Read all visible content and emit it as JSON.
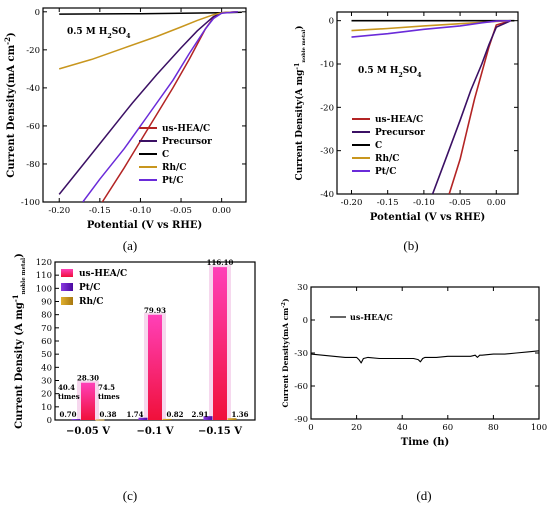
{
  "panel_labels": [
    "(a)",
    "(b)",
    "(c)",
    "(d)"
  ],
  "chart_data": [
    {
      "id": "a",
      "type": "line",
      "xlabel": "Potential (V vs RHE)",
      "ylabel": "Current Density(mA cm⁻²)",
      "annotation": "0.5 M H₂SO₄",
      "xlim": [
        -0.22,
        0.03
      ],
      "ylim": [
        -100,
        2
      ],
      "xticks": [
        -0.2,
        -0.15,
        -0.1,
        -0.05,
        0.0
      ],
      "yticks": [
        0,
        -20,
        -40,
        -60,
        -80,
        -100
      ],
      "xtick_labels": [
        "-0.20",
        "-0.15",
        "-0.10",
        "-0.05",
        "0.00"
      ],
      "ytick_labels": [
        "0",
        "-20",
        "-40",
        "-60",
        "-80",
        "-100"
      ],
      "legend_position": "bottom-right",
      "series": [
        {
          "name": "us-HEA/C",
          "color": "#b32424",
          "x": [
            -0.147,
            -0.12,
            -0.1,
            -0.08,
            -0.06,
            -0.04,
            -0.03,
            -0.02,
            -0.01,
            0.0,
            0.02
          ],
          "y": [
            -100,
            -82,
            -68,
            -54,
            -40,
            -25,
            -17,
            -9,
            -3,
            -0.5,
            0
          ]
        },
        {
          "name": "Precursor",
          "color": "#3b1064",
          "x": [
            -0.2,
            -0.17,
            -0.14,
            -0.11,
            -0.08,
            -0.05,
            -0.03,
            -0.01,
            0.0,
            0.02
          ],
          "y": [
            -96,
            -80,
            -64,
            -48,
            -33,
            -19,
            -10,
            -2.5,
            -0.6,
            0
          ]
        },
        {
          "name": "C",
          "color": "#000000",
          "x": [
            -0.2,
            -0.1,
            0.0,
            0.025
          ],
          "y": [
            -1.2,
            -1.0,
            -0.5,
            -0.2
          ]
        },
        {
          "name": "Rh/C",
          "color": "#c8961e",
          "x": [
            -0.2,
            -0.16,
            -0.12,
            -0.08,
            -0.05,
            -0.03,
            -0.01,
            0.0,
            0.02
          ],
          "y": [
            -30,
            -25,
            -19,
            -13,
            -8,
            -4.5,
            -1.5,
            -0.5,
            0
          ]
        },
        {
          "name": "Pt/C",
          "color": "#6a2bd9",
          "x": [
            -0.171,
            -0.15,
            -0.12,
            -0.09,
            -0.06,
            -0.04,
            -0.02,
            -0.01,
            0.0,
            0.02
          ],
          "y": [
            -100,
            -88,
            -72,
            -54,
            -36,
            -22,
            -9,
            -3.5,
            -0.8,
            0
          ]
        }
      ]
    },
    {
      "id": "b",
      "type": "line",
      "xlabel": "Potential (V vs RHE)",
      "ylabel": "Current Density(A mg⁻¹ noble metal)",
      "annotation": "0.5 M H₂SO₄",
      "xlim": [
        -0.22,
        0.03
      ],
      "ylim": [
        -40,
        2
      ],
      "xticks": [
        -0.2,
        -0.15,
        -0.1,
        -0.05,
        0.0
      ],
      "yticks": [
        0,
        -10,
        -20,
        -30,
        -40
      ],
      "xtick_labels": [
        "-0.20",
        "-0.15",
        "-0.10",
        "-0.05",
        "0.00"
      ],
      "ytick_labels": [
        "0",
        "-10",
        "-20",
        "-30",
        "-40"
      ],
      "legend_position": "bottom-left",
      "series": [
        {
          "name": "us-HEA/C",
          "color": "#b32424",
          "x": [
            -0.065,
            -0.05,
            -0.04,
            -0.03,
            -0.02,
            -0.01,
            0.0,
            0.02
          ],
          "y": [
            -40,
            -32,
            -25,
            -18,
            -12,
            -6,
            -1,
            0
          ]
        },
        {
          "name": "Precursor",
          "color": "#3b1064",
          "x": [
            -0.088,
            -0.07,
            -0.05,
            -0.035,
            -0.02,
            -0.01,
            0.0,
            0.02
          ],
          "y": [
            -40,
            -32,
            -23,
            -16,
            -10,
            -5.5,
            -1.5,
            0
          ]
        },
        {
          "name": "C",
          "color": "#000000",
          "x": [
            -0.2,
            -0.1,
            0.0,
            0.025
          ],
          "y": [
            0,
            0,
            0,
            0
          ]
        },
        {
          "name": "Rh/C",
          "color": "#c8961e",
          "x": [
            -0.2,
            -0.15,
            -0.1,
            -0.05,
            0.0,
            0.02
          ],
          "y": [
            -2.3,
            -1.8,
            -1.2,
            -0.7,
            -0.2,
            0
          ]
        },
        {
          "name": "Pt/C",
          "color": "#6a2bd9",
          "x": [
            -0.2,
            -0.15,
            -0.1,
            -0.05,
            -0.02,
            0.0,
            0.02
          ],
          "y": [
            -3.8,
            -3.0,
            -2.0,
            -1.2,
            -0.5,
            -0.1,
            0
          ]
        }
      ]
    },
    {
      "id": "c",
      "type": "bar",
      "ylabel": "Current Density (A mg⁻¹ noble metal)",
      "ylim": [
        0,
        120
      ],
      "yticks": [
        0,
        10,
        20,
        30,
        40,
        50,
        60,
        70,
        80,
        90,
        100,
        110,
        120
      ],
      "ytick_labels": [
        "0",
        "10",
        "20",
        "30",
        "40",
        "50",
        "60",
        "70",
        "80",
        "90",
        "100",
        "110",
        "120"
      ],
      "categories": [
        "−0.05 V",
        "−0.1 V",
        "−0.15 V"
      ],
      "legend_position": "top-left",
      "series": [
        {
          "name": "us-HEA/C",
          "color": "#f0208c",
          "values": [
            28.3,
            79.93,
            116.1
          ],
          "labels": [
            "28.30",
            "79.93",
            "116.10"
          ]
        },
        {
          "name": "Pt/C",
          "color": "#6a14c8",
          "values": [
            0.7,
            1.74,
            2.91
          ],
          "labels": [
            "0.70",
            "1.74",
            "2.91"
          ]
        },
        {
          "name": "Rh/C",
          "color": "#c89b1e",
          "values": [
            0.38,
            0.82,
            1.36
          ],
          "labels": [
            "0.38",
            "0.82",
            "1.36"
          ]
        }
      ],
      "annotations": [
        {
          "category": "−0.05 V",
          "text": "40.4"
        },
        {
          "category": "−0.05 V",
          "text": "times"
        },
        {
          "category": "−0.05 V",
          "text": "74.5"
        },
        {
          "category": "−0.05 V",
          "text": "times"
        }
      ]
    },
    {
      "id": "d",
      "type": "line",
      "xlabel": "Time (h)",
      "ylabel": "Current Density(mA cm⁻²)",
      "xlim": [
        0,
        100
      ],
      "ylim": [
        -90,
        30
      ],
      "xticks": [
        0,
        20,
        40,
        60,
        80,
        100
      ],
      "yticks": [
        30,
        0,
        -30,
        -60,
        -90
      ],
      "xtick_labels": [
        "0",
        "20",
        "40",
        "60",
        "80",
        "100"
      ],
      "ytick_labels": [
        "30",
        "0",
        "-30",
        "-60",
        "-90"
      ],
      "legend_position": "top-left",
      "series": [
        {
          "name": "us-HEA/C",
          "color": "#000000",
          "x": [
            0,
            5,
            10,
            15,
            20,
            21,
            22,
            23,
            25,
            30,
            35,
            40,
            45,
            47,
            48,
            49,
            50,
            55,
            60,
            65,
            70,
            72,
            73,
            74,
            75,
            80,
            85,
            90,
            95,
            100
          ],
          "y": [
            -31,
            -32,
            -33,
            -34,
            -34,
            -36,
            -39,
            -35,
            -34,
            -35,
            -35,
            -35,
            -35,
            -36,
            -38,
            -35,
            -34,
            -34,
            -33,
            -33,
            -33,
            -32,
            -34,
            -32,
            -32,
            -31,
            -31,
            -30,
            -29,
            -28
          ]
        }
      ]
    }
  ]
}
